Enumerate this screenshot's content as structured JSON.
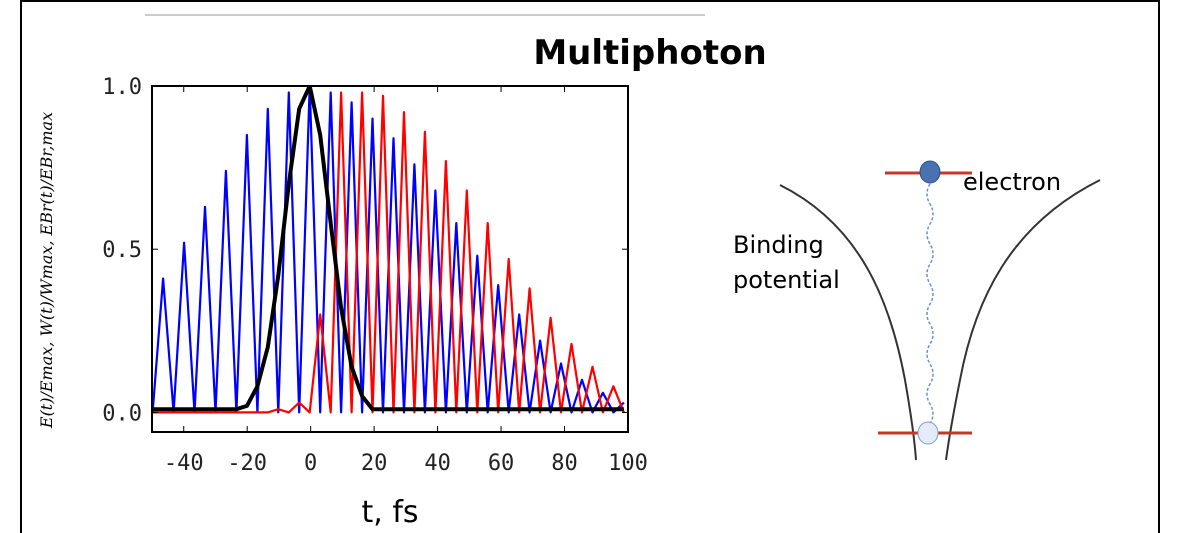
{
  "chart_data": {
    "type": "line",
    "title": "Multiphoton",
    "xlabel": "t, fs",
    "ylabel": "E(t)/Emax, W(t)/Wmax, EBr(t)/EBr,max",
    "x": [
      -49.8,
      -46.5,
      -43.2,
      -39.9,
      -36.6,
      -33.3,
      -30.0,
      -26.7,
      -23.4,
      -20.1,
      -16.8,
      -13.5,
      -10.2,
      -6.9,
      -3.6,
      -0.3,
      3.0,
      6.3,
      9.6,
      12.9,
      16.2,
      19.5,
      22.8,
      26.1,
      29.4,
      32.7,
      36.0,
      39.3,
      42.6,
      45.9,
      49.2,
      52.5,
      55.8,
      59.1,
      62.4,
      65.7,
      69.0,
      72.3,
      75.6,
      78.9,
      82.2,
      85.5,
      88.8,
      92.1,
      95.4,
      98.7
    ],
    "series": [
      {
        "color": "#0000ff",
        "values": [
          0,
          0.41,
          0,
          0.52,
          0,
          0.63,
          0,
          0.74,
          0,
          0.85,
          0,
          0.93,
          0,
          0.98,
          0,
          1.0,
          0,
          0.98,
          0,
          0.95,
          0,
          0.9,
          0,
          0.84,
          0,
          0.76,
          0,
          0.68,
          0,
          0.58,
          0,
          0.48,
          0,
          0.39,
          0,
          0.3,
          0,
          0.22,
          0,
          0.15,
          0,
          0.1,
          0,
          0.06,
          0,
          0.03
        ]
      },
      {
        "color": "#ff0000",
        "values": [
          0,
          0,
          0,
          0,
          0,
          0,
          0,
          0,
          0,
          0,
          0,
          0,
          0.01,
          0,
          0.03,
          0,
          0.3,
          0,
          0.98,
          0,
          0.98,
          0,
          0.97,
          0,
          0.92,
          0,
          0.86,
          0,
          0.77,
          0,
          0.68,
          0,
          0.58,
          0,
          0.47,
          0,
          0.38,
          0,
          0.29,
          0,
          0.21,
          0,
          0.14,
          0,
          0.08,
          0
        ]
      },
      {
        "color": "#000000",
        "values": [
          0.01,
          0.01,
          0.01,
          0.01,
          0.01,
          0.01,
          0.01,
          0.01,
          0.01,
          0.02,
          0.08,
          0.2,
          0.42,
          0.7,
          0.93,
          1.0,
          0.85,
          0.58,
          0.32,
          0.14,
          0.05,
          0.01,
          0.01,
          0.01,
          0.01,
          0.01,
          0.01,
          0.01,
          0.01,
          0.01,
          0.01,
          0.01,
          0.01,
          0.01,
          0.01,
          0.01,
          0.01,
          0.01,
          0.01,
          0.01,
          0.01,
          0.01,
          0.01,
          0.01,
          0.01,
          0.01
        ]
      }
    ],
    "xlim": [
      -50,
      100
    ],
    "xticks": [
      -40,
      -20,
      0,
      20,
      40,
      60,
      80,
      100
    ],
    "ylim": [
      -0.06,
      1.0
    ],
    "yticks": [
      {
        "value": 0,
        "label": "0.0"
      },
      0.5,
      {
        "value": 1,
        "label": "1.0"
      }
    ]
  },
  "diagram": {
    "electron": "electron",
    "potential": [
      "Binding",
      "potential"
    ]
  }
}
